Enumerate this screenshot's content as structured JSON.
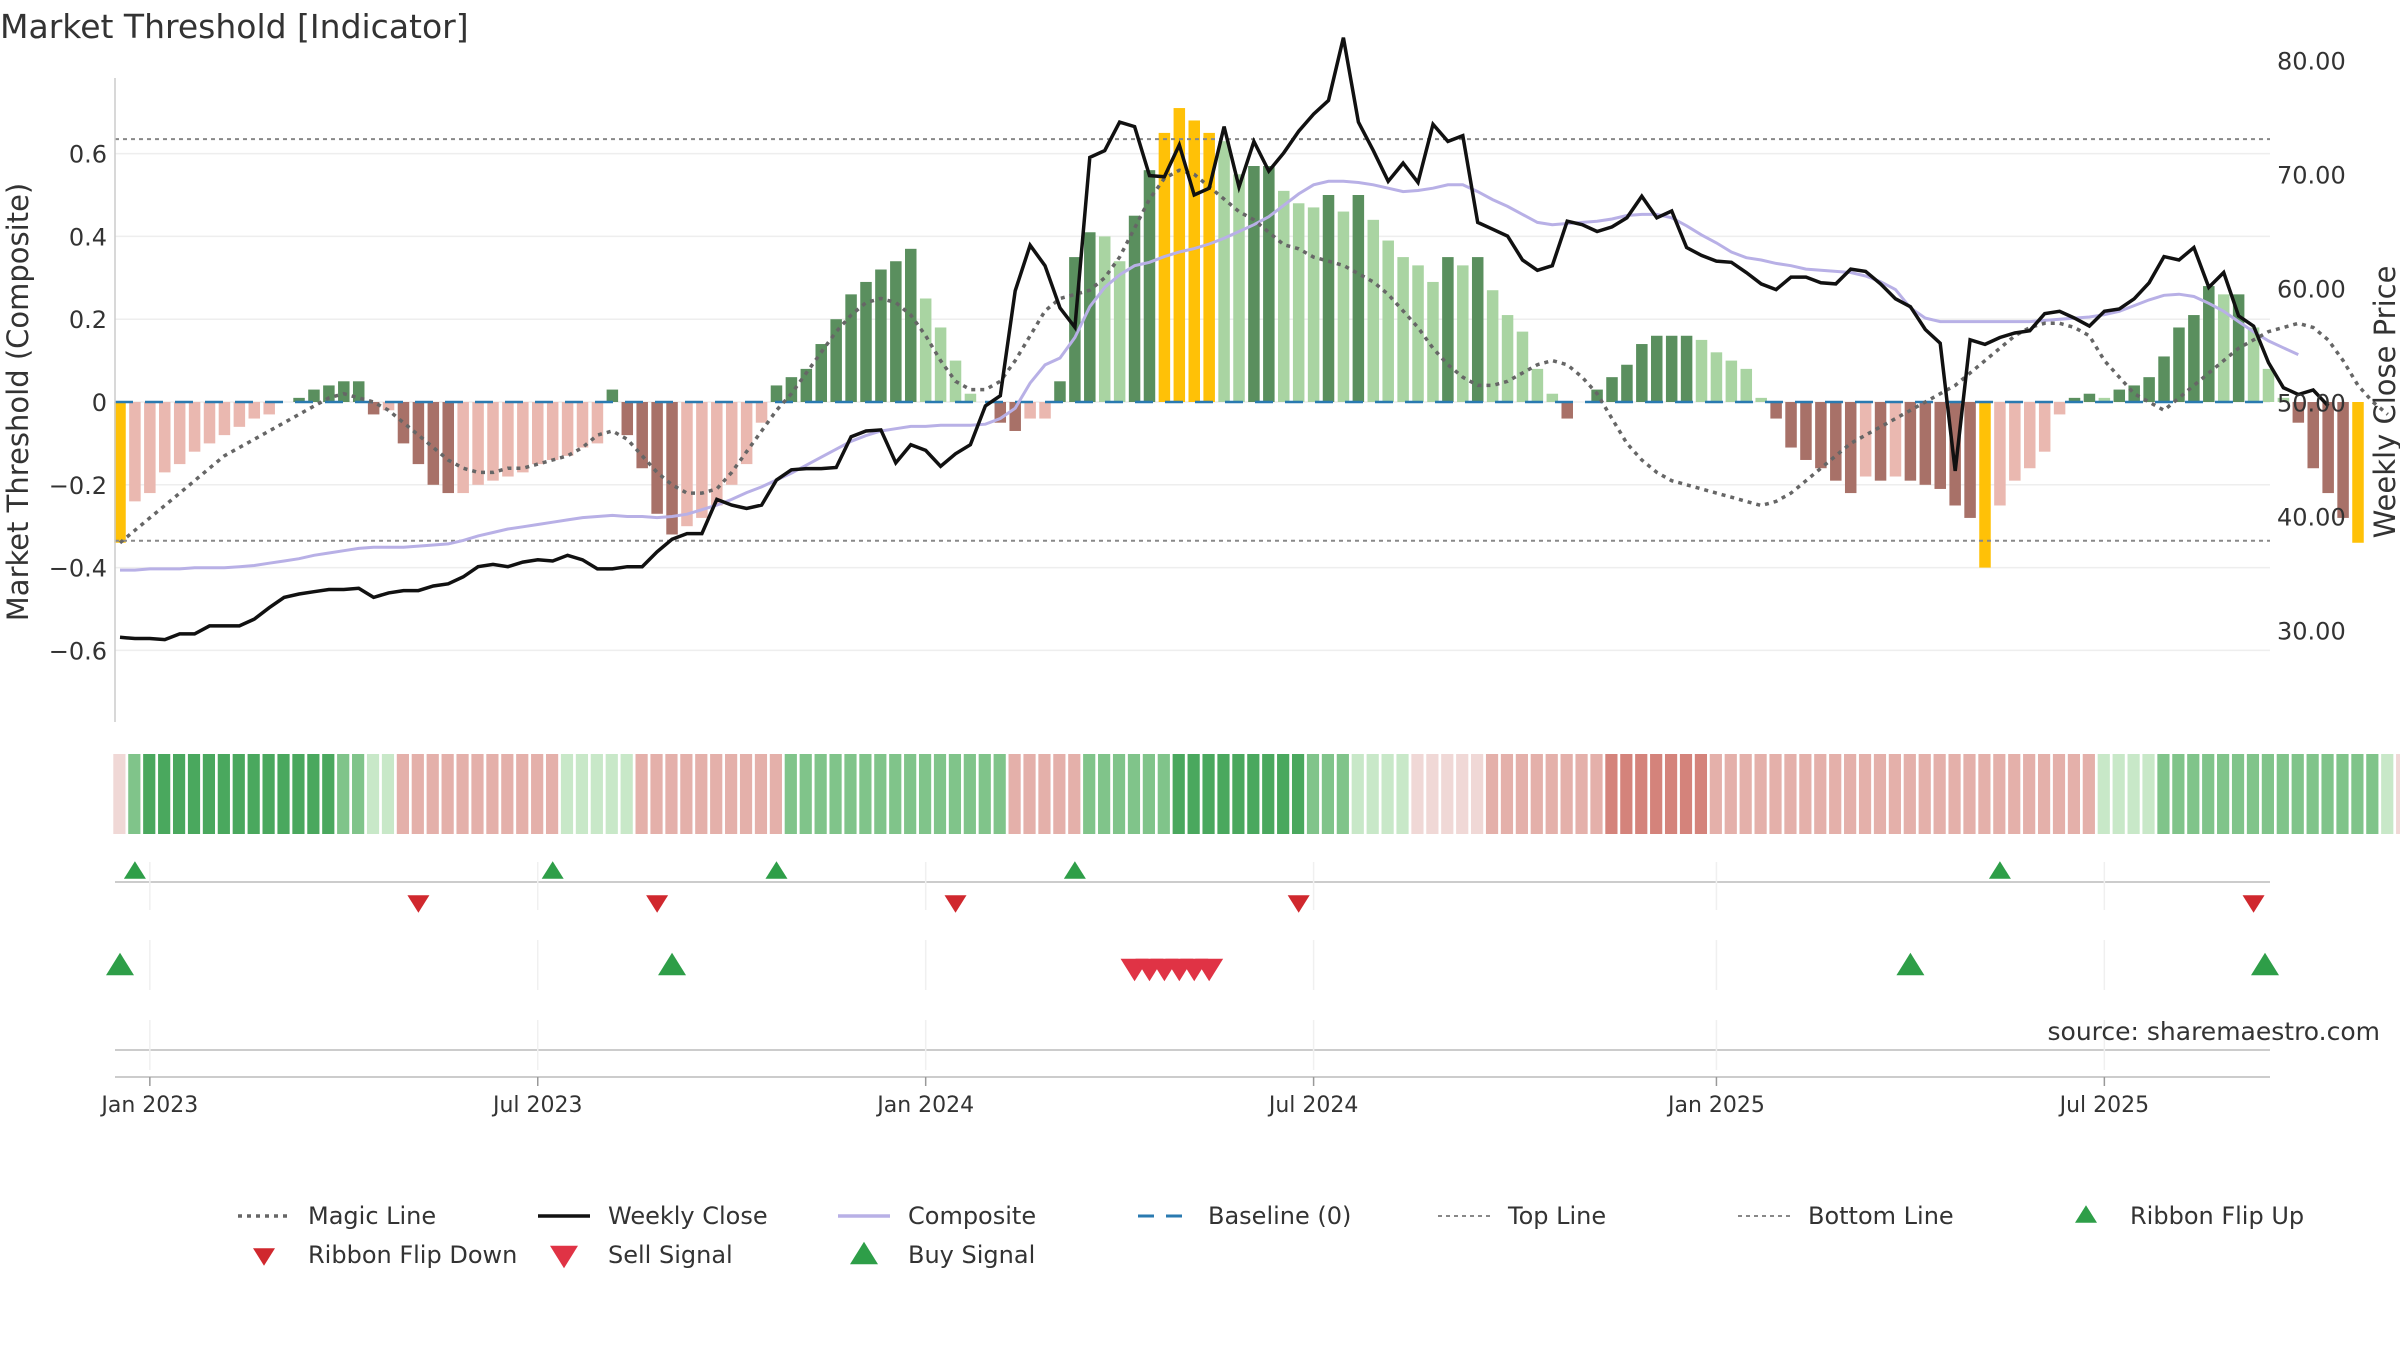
{
  "title": "Market Threshold [Indicator]",
  "source": "source: sharemaestro.com",
  "colors": {
    "magic": "#666666",
    "close": "#111111",
    "composite": "#b8b0e6",
    "baseline": "#2a7ab0",
    "refline": "#888888",
    "up_dark": "#5a8f5e",
    "up_light": "#a9d4a2",
    "down_dark": "#a87168",
    "down_light": "#eab8b0",
    "extreme": "#ffc107",
    "flip_up": "#2e9e48",
    "flip_down": "#d0282e",
    "sell": "#e03345",
    "buy": "#2e9e48",
    "grid": "#eeeeee",
    "axis": "#cccccc"
  },
  "chart_data": {
    "type": "bar",
    "title": "Market Threshold [Indicator]",
    "ylabel": "Market Threshold (Composite)",
    "ylabel_right": "Weekly Close Price",
    "ylim": [
      -0.78,
      0.78
    ],
    "ylim_right": [
      25.0,
      83.5
    ],
    "yticks": [
      "0.6",
      "0.4",
      "0.2",
      "0",
      "−0.2",
      "−0.4",
      "−0.6"
    ],
    "yticks_right": [
      "80.00",
      "70.00",
      "60.00",
      "50.00",
      "40.00",
      "30.00"
    ],
    "xticks": [
      "Jan 2023",
      "Jul 2023",
      "Jan 2024",
      "Jul 2024",
      "Jan 2025",
      "Jul 2025"
    ],
    "x_start": "2022-12-19",
    "x_end": "2025-09-29",
    "top_line": 0.635,
    "bottom_line": -0.335,
    "legend": [
      {
        "label": "Magic Line",
        "kind": "dotted"
      },
      {
        "label": "Weekly Close",
        "kind": "solid"
      },
      {
        "label": "Composite",
        "kind": "light"
      },
      {
        "label": "Baseline (0)",
        "kind": "dashed"
      },
      {
        "label": "Top Line",
        "kind": "dotted-thin"
      },
      {
        "label": "Bottom Line",
        "kind": "dotted-thin"
      },
      {
        "label": "Ribbon Flip Up",
        "kind": "tri-up-small"
      },
      {
        "label": "Ribbon Flip Down",
        "kind": "tri-down-small"
      },
      {
        "label": "Sell Signal",
        "kind": "tri-down"
      },
      {
        "label": "Buy Signal",
        "kind": "tri-up"
      }
    ],
    "series": [
      {
        "name": "Composite (bars)",
        "values": [
          -0.34,
          -0.24,
          -0.22,
          -0.17,
          -0.15,
          -0.12,
          -0.1,
          -0.08,
          -0.06,
          -0.04,
          -0.03,
          0.0,
          0.01,
          0.03,
          0.04,
          0.05,
          0.05,
          -0.03,
          -0.02,
          -0.1,
          -0.15,
          -0.2,
          -0.22,
          -0.22,
          -0.2,
          -0.19,
          -0.18,
          -0.17,
          -0.15,
          -0.14,
          -0.13,
          -0.11,
          -0.1,
          0.03,
          -0.08,
          -0.16,
          -0.27,
          -0.32,
          -0.3,
          -0.28,
          -0.25,
          -0.2,
          -0.15,
          -0.05,
          0.04,
          0.06,
          0.08,
          0.14,
          0.2,
          0.26,
          0.29,
          0.32,
          0.34,
          0.37,
          0.25,
          0.18,
          0.1,
          0.02,
          0.0,
          -0.05,
          -0.07,
          -0.04,
          -0.04,
          0.05,
          0.35,
          0.41,
          0.4,
          0.34,
          0.45,
          0.56,
          0.65,
          0.71,
          0.68,
          0.65,
          0.63,
          0.55,
          0.57,
          0.57,
          0.51,
          0.48,
          0.47,
          0.5,
          0.46,
          0.5,
          0.44,
          0.39,
          0.35,
          0.33,
          0.29,
          0.35,
          0.33,
          0.35,
          0.27,
          0.21,
          0.17,
          0.08,
          0.02,
          -0.04,
          0.0,
          0.03,
          0.06,
          0.09,
          0.14,
          0.16,
          0.16,
          0.16,
          0.15,
          0.12,
          0.1,
          0.08,
          0.01,
          -0.04,
          -0.11,
          -0.14,
          -0.16,
          -0.19,
          -0.22,
          -0.18,
          -0.19,
          -0.18,
          -0.19,
          -0.2,
          -0.21,
          -0.25,
          -0.28,
          -0.4,
          -0.25,
          -0.19,
          -0.16,
          -0.12,
          -0.03,
          0.01,
          0.02,
          0.01,
          0.03,
          0.04,
          0.06,
          0.11,
          0.18,
          0.21,
          0.28,
          0.26,
          0.26,
          0.18,
          0.08,
          0.01,
          -0.05,
          -0.16,
          -0.22,
          -0.28,
          -0.34
        ]
      },
      {
        "name": "Magic Line",
        "values": [
          -0.34,
          -0.31,
          -0.28,
          -0.25,
          -0.22,
          -0.19,
          -0.16,
          -0.13,
          -0.11,
          -0.09,
          -0.07,
          -0.05,
          -0.03,
          -0.01,
          0.01,
          0.02,
          0.01,
          0.0,
          -0.02,
          -0.05,
          -0.08,
          -0.11,
          -0.14,
          -0.16,
          -0.17,
          -0.17,
          -0.16,
          -0.16,
          -0.15,
          -0.14,
          -0.13,
          -0.11,
          -0.08,
          -0.07,
          -0.09,
          -0.13,
          -0.17,
          -0.2,
          -0.22,
          -0.22,
          -0.21,
          -0.17,
          -0.12,
          -0.07,
          -0.02,
          0.02,
          0.07,
          0.12,
          0.17,
          0.21,
          0.24,
          0.25,
          0.24,
          0.21,
          0.16,
          0.1,
          0.05,
          0.03,
          0.03,
          0.05,
          0.1,
          0.16,
          0.22,
          0.25,
          0.26,
          0.27,
          0.3,
          0.35,
          0.42,
          0.49,
          0.54,
          0.56,
          0.55,
          0.52,
          0.49,
          0.46,
          0.44,
          0.41,
          0.38,
          0.37,
          0.35,
          0.34,
          0.33,
          0.31,
          0.29,
          0.26,
          0.22,
          0.18,
          0.13,
          0.09,
          0.06,
          0.04,
          0.04,
          0.05,
          0.07,
          0.09,
          0.1,
          0.09,
          0.06,
          0.02,
          -0.04,
          -0.1,
          -0.14,
          -0.17,
          -0.19,
          -0.2,
          -0.21,
          -0.22,
          -0.23,
          -0.24,
          -0.25,
          -0.24,
          -0.22,
          -0.19,
          -0.16,
          -0.13,
          -0.1,
          -0.08,
          -0.06,
          -0.04,
          -0.02,
          0.0,
          0.02,
          0.04,
          0.07,
          0.1,
          0.13,
          0.16,
          0.18,
          0.19,
          0.19,
          0.18,
          0.16,
          0.1,
          0.06,
          0.02,
          0.0,
          -0.02,
          0.01,
          0.04,
          0.07,
          0.1,
          0.13,
          0.15,
          0.17,
          0.18,
          0.19,
          0.18,
          0.15,
          0.1,
          0.04,
          0.0,
          -0.03
        ]
      },
      {
        "name": "Weekly Close",
        "values": [
          29.4,
          29.3,
          29.3,
          29.2,
          29.7,
          29.7,
          30.4,
          30.4,
          30.4,
          31.0,
          32.0,
          32.9,
          33.2,
          33.4,
          33.6,
          33.6,
          33.7,
          32.9,
          33.3,
          33.5,
          33.5,
          33.9,
          34.1,
          34.7,
          35.6,
          35.8,
          35.6,
          36.0,
          36.2,
          36.1,
          36.6,
          36.2,
          35.4,
          35.4,
          35.6,
          35.6,
          36.9,
          38.0,
          38.5,
          38.5,
          41.5,
          41.0,
          40.7,
          41.0,
          43.2,
          44.1,
          44.2,
          44.2,
          44.3,
          47.0,
          47.5,
          47.6,
          44.7,
          46.3,
          45.8,
          44.4,
          45.5,
          46.3,
          49.7,
          50.6,
          59.8,
          63.8,
          62.0,
          58.3,
          56.6,
          71.5,
          72.1,
          74.6,
          74.2,
          69.9,
          69.8,
          72.6,
          68.2,
          68.8,
          74.2,
          68.9,
          72.9,
          70.3,
          71.9,
          73.8,
          75.3,
          76.5,
          82.0,
          74.6,
          72.1,
          69.4,
          71.0,
          69.3,
          74.4,
          72.9,
          73.4,
          65.8,
          65.2,
          64.6,
          62.5,
          61.6,
          62.0,
          65.9,
          65.6,
          65.0,
          65.4,
          66.2,
          68.1,
          66.2,
          66.8,
          63.6,
          62.9,
          62.4,
          62.3,
          61.4,
          60.4,
          59.9,
          61.0,
          61.0,
          60.5,
          60.4,
          61.7,
          61.5,
          60.4,
          59.1,
          58.4,
          56.4,
          55.2,
          44.0,
          55.5,
          55.1,
          55.7,
          56.1,
          56.3,
          57.8,
          58.0,
          57.4,
          56.7,
          58.0,
          58.2,
          59.1,
          60.5,
          62.8,
          62.5,
          63.6,
          60.1,
          61.4,
          57.6,
          56.7,
          53.5,
          51.3,
          50.7,
          51.1,
          49.7
        ]
      },
      {
        "name": "Composite",
        "values": [
          35.3,
          35.3,
          35.4,
          35.4,
          35.4,
          35.5,
          35.5,
          35.5,
          35.6,
          35.7,
          35.9,
          36.1,
          36.3,
          36.6,
          36.8,
          37.0,
          37.2,
          37.3,
          37.3,
          37.3,
          37.4,
          37.5,
          37.6,
          37.9,
          38.3,
          38.6,
          38.9,
          39.1,
          39.3,
          39.5,
          39.7,
          39.9,
          40.0,
          40.1,
          40.0,
          40.0,
          39.9,
          40.0,
          40.2,
          40.6,
          41.0,
          41.5,
          42.1,
          42.6,
          43.2,
          43.8,
          44.5,
          45.2,
          45.9,
          46.6,
          47.1,
          47.5,
          47.7,
          47.9,
          47.9,
          48.0,
          48.0,
          48.0,
          48.1,
          48.6,
          49.5,
          51.7,
          53.3,
          53.9,
          55.7,
          58.4,
          60.1,
          61.2,
          62.0,
          62.3,
          62.8,
          63.2,
          63.5,
          63.9,
          64.4,
          65.0,
          65.6,
          66.3,
          67.3,
          68.3,
          69.1,
          69.4,
          69.4,
          69.3,
          69.1,
          68.8,
          68.5,
          68.6,
          68.8,
          69.1,
          69.1,
          68.5,
          67.8,
          67.2,
          66.5,
          65.8,
          65.6,
          65.7,
          65.8,
          65.9,
          66.1,
          66.4,
          66.5,
          66.5,
          66.2,
          65.5,
          64.7,
          64.0,
          63.2,
          62.7,
          62.5,
          62.2,
          62.0,
          61.7,
          61.6,
          61.5,
          61.4,
          61.1,
          60.6,
          59.9,
          58.3,
          57.4,
          57.1,
          57.1,
          57.1,
          57.1,
          57.1,
          57.1,
          57.1,
          57.2,
          57.3,
          57.4,
          57.5,
          57.7,
          58.0,
          58.5,
          59.0,
          59.4,
          59.5,
          59.3,
          58.7,
          58.0,
          57.1,
          56.2,
          55.4,
          54.8,
          54.2
        ]
      }
    ],
    "ribbon": [
      -1,
      2,
      3,
      3,
      3,
      3,
      3,
      3,
      3,
      3,
      3,
      3,
      3,
      3,
      3,
      2,
      2,
      1,
      1,
      -2,
      -2,
      -2,
      -2,
      -2,
      -2,
      -2,
      -2,
      -2,
      -2,
      -2,
      1,
      1,
      1,
      1,
      1,
      -2,
      -2,
      -2,
      -2,
      -2,
      -2,
      -2,
      -2,
      -2,
      -2,
      2,
      2,
      2,
      2,
      2,
      2,
      2,
      2,
      2,
      2,
      2,
      2,
      2,
      2,
      2,
      -2,
      -2,
      -2,
      -2,
      -2,
      2,
      2,
      2,
      2,
      2,
      2,
      3,
      3,
      3,
      3,
      3,
      3,
      3,
      3,
      3,
      2,
      2,
      2,
      1,
      1,
      1,
      1,
      -1,
      -1,
      -1,
      -1,
      -1,
      -2,
      -2,
      -2,
      -2,
      -2,
      -2,
      -2,
      -2,
      -3,
      -3,
      -3,
      -3,
      -3,
      -3,
      -3,
      -2,
      -2,
      -2,
      -2,
      -2,
      -2,
      -2,
      -2,
      -2,
      -2,
      -2,
      -2,
      -2,
      -2,
      -2,
      -2,
      -2,
      -2,
      -2,
      -2,
      -2,
      -2,
      -2,
      -2,
      -2,
      -2,
      1,
      1,
      1,
      1,
      2,
      2,
      2,
      2,
      2,
      2,
      2,
      2,
      2,
      2,
      2,
      2,
      2,
      2,
      2,
      1,
      -1,
      -1,
      -1,
      -2,
      -2,
      -2,
      -3,
      -3
    ],
    "ribbon_flip_up": [
      "2022-12-26",
      "2023-07-10",
      "2023-10-23",
      "2024-03-11",
      "2025-05-19"
    ],
    "ribbon_flip_down": [
      "2023-05-08",
      "2023-08-28",
      "2024-01-15",
      "2024-06-24",
      "2025-09-15"
    ],
    "buy_signal": [
      "2022-12-19",
      "2023-09-04",
      "2025-04-07",
      "2025-09-29"
    ],
    "sell_signal": [
      "2024-04-08",
      "2024-04-15",
      "2024-04-22",
      "2024-04-29",
      "2024-05-06",
      "2024-05-13"
    ]
  }
}
